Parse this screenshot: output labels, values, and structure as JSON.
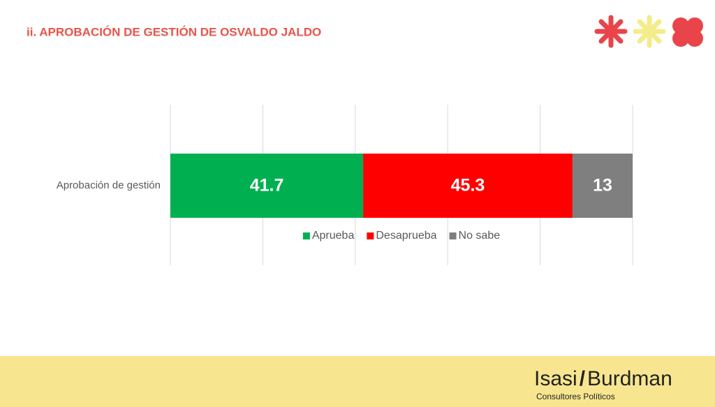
{
  "chart_data": {
    "type": "stacked-bar-horizontal",
    "title": "ii. APROBACIÓN DE GESTIÓN DE OSVALDO JALDO",
    "categories": [
      "Aprobación de gestión"
    ],
    "series": [
      {
        "name": "Aprueba",
        "color": "#00b050",
        "values": [
          41.7
        ]
      },
      {
        "name": "Desaprueba",
        "color": "#ff0000",
        "values": [
          45.3
        ]
      },
      {
        "name": "No sabe",
        "color": "#7f7f7f",
        "values": [
          13
        ]
      }
    ],
    "xlim": [
      0,
      100
    ],
    "xticks": [
      0,
      20,
      40,
      60,
      80,
      100
    ],
    "grid": true,
    "legend": "bottom"
  },
  "footer": {
    "brand_left": "Isasi",
    "brand_sep": "/",
    "brand_right": "Burdman",
    "tagline": "Consultores Políticos"
  }
}
